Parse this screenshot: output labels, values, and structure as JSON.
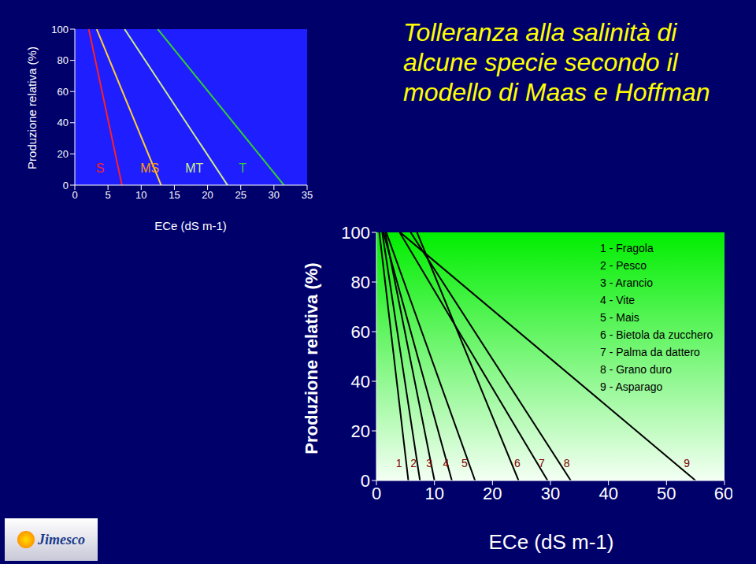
{
  "title": "Tolleranza alla salinità di alcune specie secondo il modello di Maas e Hoffman",
  "logo": "Jimesco",
  "chart_data": [
    {
      "type": "line",
      "xlabel": "ECe (dS m-1)",
      "ylabel": "Produzione relativa (%)",
      "xlim": [
        0,
        35
      ],
      "xticks": [
        0,
        5,
        10,
        15,
        20,
        25,
        30,
        35
      ],
      "ylim": [
        0,
        100
      ],
      "yticks": [
        0,
        20,
        40,
        60,
        80,
        100
      ],
      "series": [
        {
          "color": "#ff2020",
          "x": [
            2.1,
            7.1
          ],
          "values": [
            100,
            0
          ]
        },
        {
          "color": "#ffcc33",
          "x": [
            3.3,
            13
          ],
          "values": [
            100,
            0
          ]
        },
        {
          "color": "#ccee88",
          "x": [
            7.5,
            23
          ],
          "values": [
            100,
            0
          ]
        },
        {
          "color": "#33cc33",
          "x": [
            12.5,
            31.5
          ],
          "values": [
            100,
            0
          ]
        }
      ],
      "annotations": [
        {
          "text": "S",
          "x": 3.8,
          "y": 11,
          "color": "#ff2020"
        },
        {
          "text": "MS",
          "x": 11.3,
          "y": 11,
          "color": "#ff9900"
        },
        {
          "text": "MT",
          "x": 18,
          "y": 11,
          "color": "#ccee88"
        },
        {
          "text": "T",
          "x": 25.3,
          "y": 11,
          "color": "#33cc33"
        }
      ]
    },
    {
      "type": "line",
      "xlabel": "ECe (dS m-1)",
      "ylabel": "Produzione relativa (%)",
      "xlim": [
        0,
        60
      ],
      "xticks": [
        0,
        10,
        20,
        30,
        40,
        50,
        60
      ],
      "ylim": [
        0,
        100
      ],
      "yticks": [
        0,
        20,
        40,
        60,
        80,
        100
      ],
      "legend": "upper right",
      "series": [
        {
          "name": "1 - Fragola",
          "color": "#000000",
          "x": [
            0.5,
            5.5
          ],
          "values": [
            100,
            0
          ]
        },
        {
          "name": "2 - Pesco",
          "color": "#000000",
          "x": [
            1.0,
            7.5
          ],
          "values": [
            100,
            0
          ]
        },
        {
          "name": "3 - Arancio",
          "color": "#000000",
          "x": [
            1.5,
            10
          ],
          "values": [
            100,
            0
          ]
        },
        {
          "name": "4 - Vite",
          "color": "#000000",
          "x": [
            1.2,
            13
          ],
          "values": [
            100,
            0
          ]
        },
        {
          "name": "5 - Mais",
          "color": "#000000",
          "x": [
            1.7,
            17
          ],
          "values": [
            100,
            0
          ]
        },
        {
          "name": "6 - Bietola da zucchero",
          "color": "#000000",
          "x": [
            7.0,
            24.5
          ],
          "values": [
            100,
            0
          ]
        },
        {
          "name": "7 - Palma da dattero",
          "color": "#000000",
          "x": [
            4.0,
            29.5
          ],
          "values": [
            100,
            0
          ]
        },
        {
          "name": "8 - Grano duro",
          "color": "#000000",
          "x": [
            5.9,
            33.5
          ],
          "values": [
            100,
            0
          ]
        },
        {
          "name": "9 - Asparago",
          "color": "#000000",
          "x": [
            4.1,
            55
          ],
          "values": [
            100,
            0
          ]
        }
      ],
      "annotations": [
        {
          "text": "1",
          "x": 3.9,
          "y": 7,
          "color": "#800000"
        },
        {
          "text": "2",
          "x": 6.4,
          "y": 7,
          "color": "#800000"
        },
        {
          "text": "3",
          "x": 9.1,
          "y": 7,
          "color": "#800000"
        },
        {
          "text": "4",
          "x": 12,
          "y": 7,
          "color": "#800000"
        },
        {
          "text": "5",
          "x": 15.2,
          "y": 7,
          "color": "#800000"
        },
        {
          "text": "6",
          "x": 24.3,
          "y": 7,
          "color": "#800000"
        },
        {
          "text": "7",
          "x": 28.5,
          "y": 7,
          "color": "#800000"
        },
        {
          "text": "8",
          "x": 32.8,
          "y": 7,
          "color": "#800000"
        },
        {
          "text": "9",
          "x": 53.5,
          "y": 7,
          "color": "#800000"
        }
      ]
    }
  ]
}
